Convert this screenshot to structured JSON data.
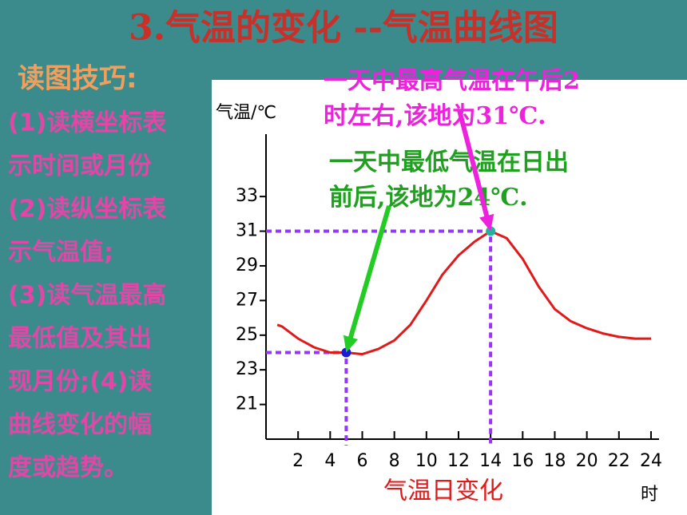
{
  "title": "3.气温的变化 --气温曲线图",
  "subtitle": "读图技巧:",
  "body": [
    "(1)读横坐标表",
    "示时间或月份",
    "(2)读纵坐标表",
    "示气温值;",
    "(3)读气温最高",
    "最低值及其出",
    "现月份;(4)读",
    "曲线变化的幅",
    "度或趋势。"
  ],
  "chart_data": {
    "type": "line",
    "title": "气温日变化",
    "y_label": "气温/℃",
    "x_label": "时",
    "x": [
      0.7,
      1,
      2,
      3,
      4,
      5,
      6,
      7,
      8,
      9,
      10,
      11,
      12,
      13,
      14,
      15,
      16,
      17,
      18,
      19,
      20,
      21,
      22,
      23,
      24
    ],
    "series": [
      {
        "name": "气温",
        "color": "#e01a1a",
        "values": [
          25.6,
          25.5,
          24.8,
          24.3,
          24.0,
          24.0,
          23.9,
          24.2,
          24.7,
          25.6,
          27.0,
          28.5,
          29.6,
          30.4,
          31.0,
          30.6,
          29.4,
          27.8,
          26.5,
          25.8,
          25.4,
          25.1,
          24.9,
          24.8,
          24.8
        ]
      }
    ],
    "xlim": [
      0,
      24.5
    ],
    "ylim": [
      19,
      36.6
    ],
    "xticks": [
      2,
      4,
      6,
      8,
      10,
      12,
      14,
      16,
      18,
      20,
      22,
      24
    ],
    "yticks": [
      21,
      23,
      25,
      27,
      29,
      31,
      33
    ],
    "highlights": [
      {
        "x": 5,
        "y": 24,
        "color": "#1a1ad0",
        "arrow_color": "#22cc22"
      },
      {
        "x": 14,
        "y": 31,
        "color": "#22b39a",
        "arrow_color": "#ee22dd"
      }
    ],
    "guide_color": "#9933ff",
    "annotations": [
      {
        "lines": [
          "一天中最高气温在午后2",
          "时左右,该地为31℃."
        ],
        "color": "#ee22dd"
      },
      {
        "lines": [
          "一天中最低气温在日出",
          "前后,该地为24℃."
        ],
        "color": "#1fa01f"
      }
    ]
  }
}
